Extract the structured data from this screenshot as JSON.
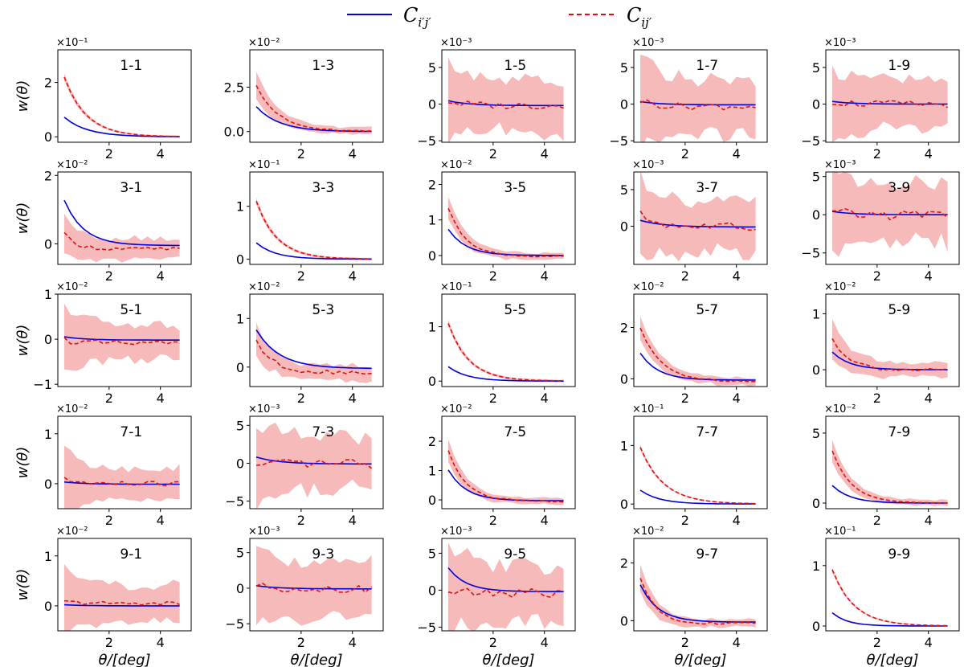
{
  "colors": {
    "model": "#0000dd",
    "data": "#dd1111",
    "band": "#f4a3a3"
  },
  "legend": {
    "model_label": "C_{i'j'}",
    "data_label": "C_{ij'}",
    "model_main": "C",
    "model_sub": "i′j′",
    "data_main": "C",
    "data_sub": "ij′"
  },
  "axes": {
    "xlabel": "θ/[deg]",
    "ylabel": "w(θ)",
    "xticks": [
      2,
      4
    ],
    "xlim": [
      0,
      5.2
    ]
  },
  "chart_data": {
    "type": "line",
    "description_series": [
      "C_{i'j'} model (solid blue)",
      "C_{ij'} measured (dashed red) with shaded error band"
    ],
    "panels": [
      {
        "label": "1-1",
        "row": 0,
        "col": 0,
        "exp": "×10⁻¹",
        "ylim": [
          -0.2,
          3.2
        ],
        "yticks": [
          0,
          2
        ],
        "yticklabels": [
          "0",
          "2"
        ],
        "model": {
          "amp": 0.95,
          "decay": 0.9,
          "offset": 0
        },
        "data": {
          "amp": 2.95,
          "decay": 0.85,
          "offset": 0
        },
        "band": {
          "base": 0.03,
          "amp": 0.15
        },
        "noise": 0.0
      },
      {
        "label": "1-3",
        "row": 0,
        "col": 1,
        "exp": "×10⁻²",
        "ylim": [
          -0.6,
          4.6
        ],
        "yticks": [
          0,
          2.5
        ],
        "yticklabels": [
          "0.0",
          "2.5"
        ],
        "model": {
          "amp": 1.85,
          "decay": 0.9,
          "offset": 0
        },
        "data": {
          "amp": 3.55,
          "decay": 0.85,
          "offset": 0
        },
        "band": {
          "base": 0.2,
          "amp": 0.8
        },
        "noise": 0.05
      },
      {
        "label": "1-5",
        "row": 0,
        "col": 2,
        "exp": "×10⁻³",
        "ylim": [
          -5.2,
          7.4
        ],
        "yticks": [
          -5,
          0,
          5
        ],
        "yticklabels": [
          "−5",
          "0",
          "5"
        ],
        "model": {
          "amp": 0.9,
          "decay": 0.8,
          "offset": -0.2
        },
        "data": {
          "amp": 0.9,
          "decay": 0.6,
          "offset": -0.2
        },
        "band": {
          "base": 3.5,
          "amp": 2.5
        },
        "noise": 0.5
      },
      {
        "label": "1-7",
        "row": 0,
        "col": 3,
        "exp": "×10⁻³",
        "ylim": [
          -5.2,
          7.4
        ],
        "yticks": [
          -5,
          0,
          5
        ],
        "yticklabels": [
          "−5",
          "0",
          "5"
        ],
        "model": {
          "amp": 0.6,
          "decay": 0.8,
          "offset": -0.1
        },
        "data": {
          "amp": 1.2,
          "decay": 0.6,
          "offset": -0.3
        },
        "band": {
          "base": 3.5,
          "amp": 3.5
        },
        "noise": 0.5
      },
      {
        "label": "1-9",
        "row": 0,
        "col": 4,
        "exp": "×10⁻³",
        "ylim": [
          -5.2,
          7.4
        ],
        "yticks": [
          -5,
          0,
          5
        ],
        "yticklabels": [
          "−5",
          "0",
          "5"
        ],
        "model": {
          "amp": 0.5,
          "decay": 0.8,
          "offset": 0
        },
        "data": {
          "amp": 0.6,
          "decay": 0.6,
          "offset": 0
        },
        "band": {
          "base": 3.0,
          "amp": 2.5
        },
        "noise": 0.5
      },
      {
        "label": "3-1",
        "row": 1,
        "col": 0,
        "exp": "×10⁻²",
        "ylim": [
          -0.6,
          2.1
        ],
        "yticks": [
          0,
          2
        ],
        "yticklabels": [
          "0",
          "2"
        ],
        "model": {
          "amp": 1.85,
          "decay": 0.75,
          "offset": -0.05
        },
        "data": {
          "amp": 0.7,
          "decay": 0.5,
          "offset": -0.15
        },
        "band": {
          "base": 0.3,
          "amp": 0.35
        },
        "noise": 0.06
      },
      {
        "label": "3-3",
        "row": 1,
        "col": 1,
        "exp": "×10⁻¹",
        "ylim": [
          -0.1,
          1.65
        ],
        "yticks": [
          0,
          1
        ],
        "yticklabels": [
          "0",
          "1"
        ],
        "model": {
          "amp": 0.43,
          "decay": 0.75,
          "offset": 0
        },
        "data": {
          "amp": 1.5,
          "decay": 0.8,
          "offset": 0
        },
        "band": {
          "base": 0.02,
          "amp": 0.06
        },
        "noise": 0.0
      },
      {
        "label": "3-5",
        "row": 1,
        "col": 2,
        "exp": "×10⁻²",
        "ylim": [
          -0.25,
          2.35
        ],
        "yticks": [
          0,
          1,
          2
        ],
        "yticklabels": [
          "0",
          "1",
          "2"
        ],
        "model": {
          "amp": 1.05,
          "decay": 0.7,
          "offset": 0
        },
        "data": {
          "amp": 1.95,
          "decay": 0.7,
          "offset": -0.03
        },
        "band": {
          "base": 0.1,
          "amp": 0.3
        },
        "noise": 0.02
      },
      {
        "label": "3-7",
        "row": 1,
        "col": 3,
        "exp": "×10⁻³",
        "ylim": [
          -5.2,
          7.4
        ],
        "yticks": [
          0,
          5
        ],
        "yticklabels": [
          "0",
          "5"
        ],
        "model": {
          "amp": 1.2,
          "decay": 0.9,
          "offset": -0.1
        },
        "data": {
          "amp": 2.4,
          "decay": 0.7,
          "offset": -0.1
        },
        "band": {
          "base": 3.5,
          "amp": 2.5
        },
        "noise": 0.6
      },
      {
        "label": "3-9",
        "row": 1,
        "col": 4,
        "exp": "×10⁻³",
        "ylim": [
          -6.5,
          5.6
        ],
        "yticks": [
          -5,
          0,
          5
        ],
        "yticklabels": [
          "−5",
          "0",
          "5"
        ],
        "model": {
          "amp": 0.6,
          "decay": 0.8,
          "offset": 0
        },
        "data": {
          "amp": 0.3,
          "decay": 0.6,
          "offset": 0
        },
        "band": {
          "base": 3.8,
          "amp": 2.5
        },
        "noise": 0.7
      },
      {
        "label": "5-1",
        "row": 2,
        "col": 0,
        "exp": "×10⁻²",
        "ylim": [
          -1.05,
          1.0
        ],
        "yticks": [
          -1,
          0,
          1
        ],
        "yticklabels": [
          "−1",
          "0",
          "1"
        ],
        "model": {
          "amp": 0.1,
          "decay": 0.8,
          "offset": -0.02
        },
        "data": {
          "amp": 0.15,
          "decay": 0.6,
          "offset": -0.1
        },
        "band": {
          "base": 0.35,
          "amp": 0.5
        },
        "noise": 0.07
      },
      {
        "label": "5-3",
        "row": 2,
        "col": 1,
        "exp": "×10⁻²",
        "ylim": [
          -0.4,
          1.5
        ],
        "yticks": [
          0,
          1
        ],
        "yticklabels": [
          "0",
          "1"
        ],
        "model": {
          "amp": 1.05,
          "decay": 0.9,
          "offset": -0.03
        },
        "data": {
          "amp": 1.0,
          "decay": 0.6,
          "offset": -0.1
        },
        "band": {
          "base": 0.15,
          "amp": 0.25
        },
        "noise": 0.05
      },
      {
        "label": "5-5",
        "row": 2,
        "col": 2,
        "exp": "×10⁻¹",
        "ylim": [
          -0.1,
          1.6
        ],
        "yticks": [
          0,
          1
        ],
        "yticklabels": [
          "0",
          "1"
        ],
        "model": {
          "amp": 0.37,
          "decay": 0.75,
          "offset": 0
        },
        "data": {
          "amp": 1.45,
          "decay": 0.8,
          "offset": 0
        },
        "band": {
          "base": 0.02,
          "amp": 0.05
        },
        "noise": 0.0
      },
      {
        "label": "5-7",
        "row": 2,
        "col": 3,
        "exp": "×10⁻²",
        "ylim": [
          -0.3,
          3.3
        ],
        "yticks": [
          0,
          2
        ],
        "yticklabels": [
          "0",
          "2"
        ],
        "model": {
          "amp": 1.5,
          "decay": 0.7,
          "offset": -0.05
        },
        "data": {
          "amp": 2.85,
          "decay": 0.8,
          "offset": -0.1
        },
        "band": {
          "base": 0.15,
          "amp": 0.45
        },
        "noise": 0.03
      },
      {
        "label": "5-9",
        "row": 2,
        "col": 4,
        "exp": "×10⁻²",
        "ylim": [
          -0.3,
          1.35
        ],
        "yticks": [
          0,
          1
        ],
        "yticklabels": [
          "0",
          "1"
        ],
        "model": {
          "amp": 0.45,
          "decay": 0.7,
          "offset": 0
        },
        "data": {
          "amp": 0.8,
          "decay": 0.7,
          "offset": -0.01
        },
        "band": {
          "base": 0.12,
          "amp": 0.3
        },
        "noise": 0.03
      },
      {
        "label": "7-1",
        "row": 3,
        "col": 0,
        "exp": "×10⁻²",
        "ylim": [
          -0.5,
          1.35
        ],
        "yticks": [
          0,
          1
        ],
        "yticklabels": [
          "0",
          "1"
        ],
        "model": {
          "amp": 0.06,
          "decay": 0.8,
          "offset": -0.01
        },
        "data": {
          "amp": 0.12,
          "decay": 0.6,
          "offset": 0
        },
        "band": {
          "base": 0.3,
          "amp": 0.5
        },
        "noise": 0.05
      },
      {
        "label": "7-3",
        "row": 3,
        "col": 1,
        "exp": "×10⁻³",
        "ylim": [
          -6.0,
          6.2
        ],
        "yticks": [
          -5,
          0,
          5
        ],
        "yticklabels": [
          "−5",
          "0",
          "5"
        ],
        "model": {
          "amp": 1.2,
          "decay": 0.9,
          "offset": -0.1
        },
        "data": {
          "amp": -0.6,
          "decay": 0.6,
          "offset": -0.1
        },
        "band": {
          "base": 3.5,
          "amp": 2.0
        },
        "noise": 0.6
      },
      {
        "label": "7-5",
        "row": 3,
        "col": 2,
        "exp": "×10⁻²",
        "ylim": [
          -0.3,
          2.85
        ],
        "yticks": [
          0,
          1,
          2
        ],
        "yticklabels": [
          "0",
          "1",
          "2"
        ],
        "model": {
          "amp": 1.5,
          "decay": 0.7,
          "offset": -0.03
        },
        "data": {
          "amp": 2.45,
          "decay": 0.7,
          "offset": -0.05
        },
        "band": {
          "base": 0.1,
          "amp": 0.4
        },
        "noise": 0.03
      },
      {
        "label": "7-7",
        "row": 3,
        "col": 3,
        "exp": "×10⁻¹",
        "ylim": [
          -0.08,
          1.5
        ],
        "yticks": [
          0,
          1
        ],
        "yticklabels": [
          "0",
          "1"
        ],
        "model": {
          "amp": 0.33,
          "decay": 0.75,
          "offset": 0
        },
        "data": {
          "amp": 1.28,
          "decay": 0.9,
          "offset": 0
        },
        "band": {
          "base": 0.01,
          "amp": 0.04
        },
        "noise": 0.0
      },
      {
        "label": "7-9",
        "row": 3,
        "col": 4,
        "exp": "×10⁻²",
        "ylim": [
          -0.4,
          6.2
        ],
        "yticks": [
          0,
          5
        ],
        "yticklabels": [
          "0",
          "5"
        ],
        "model": {
          "amp": 1.8,
          "decay": 0.7,
          "offset": 0
        },
        "data": {
          "amp": 5.2,
          "decay": 0.75,
          "offset": 0
        },
        "band": {
          "base": 0.2,
          "amp": 0.8
        },
        "noise": 0.0
      },
      {
        "label": "9-1",
        "row": 4,
        "col": 0,
        "exp": "×10⁻²",
        "ylim": [
          -0.5,
          1.35
        ],
        "yticks": [
          0,
          1
        ],
        "yticklabels": [
          "0",
          "1"
        ],
        "model": {
          "amp": 0.03,
          "decay": 0.8,
          "offset": 0
        },
        "data": {
          "amp": 0.05,
          "decay": 0.6,
          "offset": 0.05
        },
        "band": {
          "base": 0.35,
          "amp": 0.4
        },
        "noise": 0.04
      },
      {
        "label": "9-3",
        "row": 4,
        "col": 1,
        "exp": "×10⁻³",
        "ylim": [
          -6.0,
          7.0
        ],
        "yticks": [
          -5,
          0,
          5
        ],
        "yticklabels": [
          "−5",
          "0",
          "5"
        ],
        "model": {
          "amp": 0.6,
          "decay": 0.9,
          "offset": -0.1
        },
        "data": {
          "amp": 0.9,
          "decay": 0.6,
          "offset": -0.1
        },
        "band": {
          "base": 3.8,
          "amp": 2.0
        },
        "noise": 0.5
      },
      {
        "label": "9-5",
        "row": 4,
        "col": 2,
        "exp": "×10⁻³",
        "ylim": [
          -5.5,
          7.0
        ],
        "yticks": [
          -5,
          0,
          5
        ],
        "yticklabels": [
          "−5",
          "0",
          "5"
        ],
        "model": {
          "amp": 4.6,
          "decay": 0.7,
          "offset": -0.2
        },
        "data": {
          "amp": 0.3,
          "decay": 0.6,
          "offset": -0.4
        },
        "band": {
          "base": 3.8,
          "amp": 2.5
        },
        "noise": 0.6
      },
      {
        "label": "9-7",
        "row": 4,
        "col": 3,
        "exp": "×10⁻²",
        "ylim": [
          -0.35,
          2.85
        ],
        "yticks": [
          0,
          2
        ],
        "yticklabels": [
          "0",
          "2"
        ],
        "model": {
          "amp": 1.85,
          "decay": 0.7,
          "offset": -0.05
        },
        "data": {
          "amp": 2.4,
          "decay": 0.6,
          "offset": -0.1
        },
        "band": {
          "base": 0.12,
          "amp": 0.5
        },
        "noise": 0.04
      },
      {
        "label": "9-9",
        "row": 4,
        "col": 4,
        "exp": "×10⁻¹",
        "ylim": [
          -0.08,
          1.45
        ],
        "yticks": [
          0,
          1
        ],
        "yticklabels": [
          "0",
          "1"
        ],
        "model": {
          "amp": 0.33,
          "decay": 0.6,
          "offset": 0
        },
        "data": {
          "amp": 1.25,
          "decay": 0.85,
          "offset": 0
        },
        "band": {
          "base": 0.01,
          "amp": 0.04
        },
        "noise": 0.0
      }
    ]
  }
}
